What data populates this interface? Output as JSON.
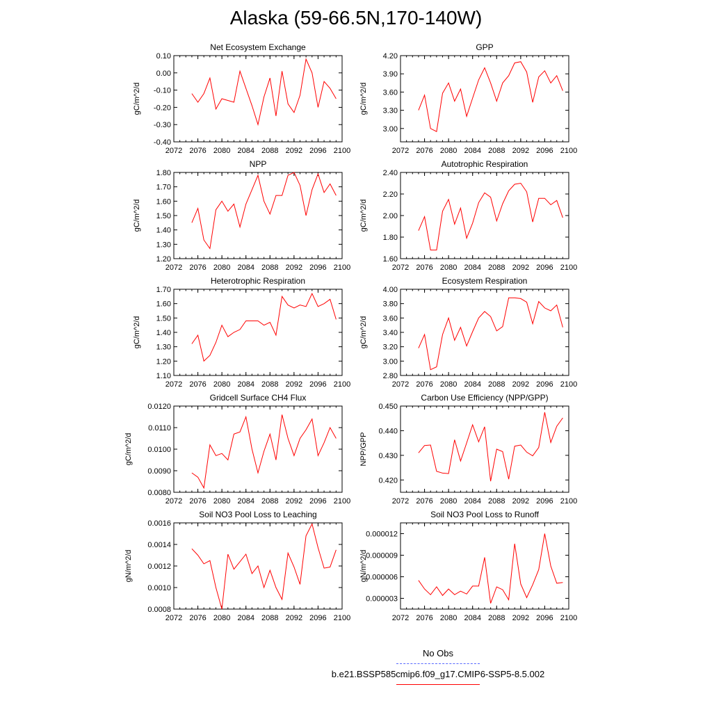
{
  "title": "Alaska (59-66.5N,170-140W)",
  "legend": [
    {
      "label": "No Obs",
      "color": "#5566ff",
      "style": "dashed"
    },
    {
      "label": "b.e21.BSSP585cmip6.f09_g17.CMIP6-SSP5-8.5.002",
      "color": "#ff0000",
      "style": "solid"
    }
  ],
  "chart_data": [
    {
      "type": "line",
      "title": "Net Ecosystem Exchange",
      "ylabel": "gC/m^2/d",
      "xlim": [
        2072,
        2100
      ],
      "xticks": [
        "2072",
        "2076",
        "2080",
        "2084",
        "2088",
        "2092",
        "2096",
        "2100"
      ],
      "ylim": [
        -0.4,
        0.1
      ],
      "yticks": [
        "0.10",
        "0.00",
        "-0.10",
        "-0.20",
        "-0.30",
        "-0.40"
      ],
      "series": [
        {
          "color": "#ff0000",
          "x": [
            2075,
            2076,
            2077,
            2078,
            2079,
            2080,
            2081,
            2082,
            2083,
            2084,
            2085,
            2086,
            2087,
            2088,
            2089,
            2090,
            2091,
            2092,
            2093,
            2094,
            2095,
            2096,
            2097,
            2098,
            2099
          ],
          "values": [
            -0.12,
            -0.17,
            -0.12,
            -0.03,
            -0.21,
            -0.15,
            -0.16,
            -0.17,
            0.01,
            -0.09,
            -0.19,
            -0.3,
            -0.14,
            -0.03,
            -0.25,
            0.01,
            -0.18,
            -0.23,
            -0.13,
            0.08,
            0.0,
            -0.2,
            -0.05,
            -0.09,
            -0.15
          ]
        }
      ]
    },
    {
      "type": "line",
      "title": "GPP",
      "ylabel": "gC/m^2/d",
      "xlim": [
        2072,
        2100
      ],
      "xticks": [
        "2072",
        "2076",
        "2080",
        "2084",
        "2088",
        "2092",
        "2096",
        "2100"
      ],
      "ylim": [
        2.78,
        4.2
      ],
      "yticks": [
        "4.20",
        "3.90",
        "3.60",
        "3.30",
        "3.00"
      ],
      "series": [
        {
          "color": "#ff0000",
          "x": [
            2075,
            2076,
            2077,
            2078,
            2079,
            2080,
            2081,
            2082,
            2083,
            2084,
            2085,
            2086,
            2087,
            2088,
            2089,
            2090,
            2091,
            2092,
            2093,
            2094,
            2095,
            2096,
            2097,
            2098,
            2099
          ],
          "values": [
            3.3,
            3.55,
            3.0,
            2.95,
            3.58,
            3.75,
            3.45,
            3.65,
            3.2,
            3.5,
            3.8,
            4.0,
            3.75,
            3.45,
            3.75,
            3.87,
            4.08,
            4.1,
            3.93,
            3.43,
            3.85,
            3.95,
            3.75,
            3.87,
            3.62
          ]
        }
      ]
    },
    {
      "type": "line",
      "title": "NPP",
      "ylabel": "gC/m^2/d",
      "xlim": [
        2072,
        2100
      ],
      "xticks": [
        "2072",
        "2076",
        "2080",
        "2084",
        "2088",
        "2092",
        "2096",
        "2100"
      ],
      "ylim": [
        1.2,
        1.8
      ],
      "yticks": [
        "1.80",
        "1.70",
        "1.60",
        "1.50",
        "1.40",
        "1.30",
        "1.20"
      ],
      "series": [
        {
          "color": "#ff0000",
          "x": [
            2075,
            2076,
            2077,
            2078,
            2079,
            2080,
            2081,
            2082,
            2083,
            2084,
            2085,
            2086,
            2087,
            2088,
            2089,
            2090,
            2091,
            2092,
            2093,
            2094,
            2095,
            2096,
            2097,
            2098,
            2099
          ],
          "values": [
            1.45,
            1.55,
            1.33,
            1.27,
            1.54,
            1.6,
            1.53,
            1.58,
            1.42,
            1.58,
            1.68,
            1.78,
            1.6,
            1.51,
            1.64,
            1.64,
            1.78,
            1.8,
            1.71,
            1.5,
            1.68,
            1.79,
            1.66,
            1.72,
            1.64
          ]
        }
      ]
    },
    {
      "type": "line",
      "title": "Autotrophic Respiration",
      "ylabel": "gC/m^2/d",
      "xlim": [
        2072,
        2100
      ],
      "xticks": [
        "2072",
        "2076",
        "2080",
        "2084",
        "2088",
        "2092",
        "2096",
        "2100"
      ],
      "ylim": [
        1.6,
        2.4
      ],
      "yticks": [
        "2.40",
        "2.20",
        "2.00",
        "1.80",
        "1.60"
      ],
      "series": [
        {
          "color": "#ff0000",
          "x": [
            2075,
            2076,
            2077,
            2078,
            2079,
            2080,
            2081,
            2082,
            2083,
            2084,
            2085,
            2086,
            2087,
            2088,
            2089,
            2090,
            2091,
            2092,
            2093,
            2094,
            2095,
            2096,
            2097,
            2098,
            2099
          ],
          "values": [
            1.86,
            1.99,
            1.68,
            1.68,
            2.04,
            2.15,
            1.92,
            2.07,
            1.79,
            1.93,
            2.12,
            2.21,
            2.17,
            1.95,
            2.11,
            2.23,
            2.29,
            2.3,
            2.22,
            1.94,
            2.16,
            2.16,
            2.1,
            2.14,
            1.98
          ]
        }
      ]
    },
    {
      "type": "line",
      "title": "Heterotrophic Respiration",
      "ylabel": "gC/m^2/d",
      "xlim": [
        2072,
        2100
      ],
      "xticks": [
        "2072",
        "2076",
        "2080",
        "2084",
        "2088",
        "2092",
        "2096",
        "2100"
      ],
      "ylim": [
        1.1,
        1.7
      ],
      "yticks": [
        "1.70",
        "1.60",
        "1.50",
        "1.40",
        "1.30",
        "1.20",
        "1.10"
      ],
      "series": [
        {
          "color": "#ff0000",
          "x": [
            2075,
            2076,
            2077,
            2078,
            2079,
            2080,
            2081,
            2082,
            2083,
            2084,
            2085,
            2086,
            2087,
            2088,
            2089,
            2090,
            2091,
            2092,
            2093,
            2094,
            2095,
            2096,
            2097,
            2098,
            2099
          ],
          "values": [
            1.32,
            1.38,
            1.2,
            1.24,
            1.33,
            1.45,
            1.37,
            1.4,
            1.42,
            1.48,
            1.48,
            1.48,
            1.45,
            1.47,
            1.38,
            1.65,
            1.59,
            1.57,
            1.59,
            1.58,
            1.67,
            1.58,
            1.6,
            1.63,
            1.49
          ]
        }
      ]
    },
    {
      "type": "line",
      "title": "Ecosystem Respiration",
      "ylabel": "gC/m^2/d",
      "xlim": [
        2072,
        2100
      ],
      "xticks": [
        "2072",
        "2076",
        "2080",
        "2084",
        "2088",
        "2092",
        "2096",
        "2100"
      ],
      "ylim": [
        2.8,
        4.0
      ],
      "yticks": [
        "4.00",
        "3.80",
        "3.60",
        "3.40",
        "3.20",
        "3.00",
        "2.80"
      ],
      "series": [
        {
          "color": "#ff0000",
          "x": [
            2075,
            2076,
            2077,
            2078,
            2079,
            2080,
            2081,
            2082,
            2083,
            2084,
            2085,
            2086,
            2087,
            2088,
            2089,
            2090,
            2091,
            2092,
            2093,
            2094,
            2095,
            2096,
            2097,
            2098,
            2099
          ],
          "values": [
            3.18,
            3.37,
            2.88,
            2.92,
            3.37,
            3.6,
            3.29,
            3.47,
            3.21,
            3.41,
            3.6,
            3.69,
            3.62,
            3.42,
            3.48,
            3.88,
            3.88,
            3.87,
            3.82,
            3.52,
            3.83,
            3.74,
            3.7,
            3.78,
            3.47
          ]
        }
      ]
    },
    {
      "type": "line",
      "title": "Gridcell Surface CH4 Flux",
      "ylabel": "gC/m^2/d",
      "xlim": [
        2072,
        2100
      ],
      "xticks": [
        "2072",
        "2076",
        "2080",
        "2084",
        "2088",
        "2092",
        "2096",
        "2100"
      ],
      "ylim": [
        0.008,
        0.012
      ],
      "yticks": [
        "0.0120",
        "0.0110",
        "0.0100",
        "0.0090",
        "0.0080"
      ],
      "series": [
        {
          "color": "#ff0000",
          "x": [
            2075,
            2076,
            2077,
            2078,
            2079,
            2080,
            2081,
            2082,
            2083,
            2084,
            2085,
            2086,
            2087,
            2088,
            2089,
            2090,
            2091,
            2092,
            2093,
            2094,
            2095,
            2096,
            2097,
            2098,
            2099
          ],
          "values": [
            0.0089,
            0.0087,
            0.0082,
            0.0102,
            0.0097,
            0.0098,
            0.0095,
            0.0107,
            0.0108,
            0.0115,
            0.01,
            0.0089,
            0.0099,
            0.0107,
            0.0095,
            0.0116,
            0.0105,
            0.0097,
            0.0105,
            0.0109,
            0.0114,
            0.0097,
            0.0103,
            0.011,
            0.0105
          ]
        }
      ]
    },
    {
      "type": "line",
      "title": "Carbon Use Efficiency (NPP/GPP)",
      "ylabel": "NPP/GPP",
      "xlim": [
        2072,
        2100
      ],
      "xticks": [
        "2072",
        "2076",
        "2080",
        "2084",
        "2088",
        "2092",
        "2096",
        "2100"
      ],
      "ylim": [
        0.415,
        0.45
      ],
      "yticks": [
        "0.450",
        "0.440",
        "0.430",
        "0.420"
      ],
      "series": [
        {
          "color": "#ff0000",
          "x": [
            2075,
            2076,
            2077,
            2078,
            2079,
            2080,
            2081,
            2082,
            2083,
            2084,
            2085,
            2086,
            2087,
            2088,
            2089,
            2090,
            2091,
            2092,
            2093,
            2094,
            2095,
            2096,
            2097,
            2098,
            2099
          ],
          "values": [
            0.431,
            0.434,
            0.4342,
            0.4235,
            0.4228,
            0.4226,
            0.4363,
            0.4277,
            0.435,
            0.4424,
            0.4355,
            0.4416,
            0.4195,
            0.4325,
            0.4315,
            0.4203,
            0.4337,
            0.4342,
            0.4313,
            0.4298,
            0.4332,
            0.4475,
            0.4352,
            0.4418,
            0.4452
          ]
        }
      ]
    },
    {
      "type": "line",
      "title": "Soil NO3 Pool Loss to Leaching",
      "ylabel": "gN/m^2/d",
      "xlim": [
        2072,
        2100
      ],
      "xticks": [
        "2072",
        "2076",
        "2080",
        "2084",
        "2088",
        "2092",
        "2096",
        "2100"
      ],
      "ylim": [
        0.0008,
        0.0016
      ],
      "yticks": [
        "0.0016",
        "0.0014",
        "0.0012",
        "0.0010",
        "0.0008"
      ],
      "series": [
        {
          "color": "#ff0000",
          "x": [
            2075,
            2076,
            2077,
            2078,
            2079,
            2080,
            2081,
            2082,
            2083,
            2084,
            2085,
            2086,
            2087,
            2088,
            2089,
            2090,
            2091,
            2092,
            2093,
            2094,
            2095,
            2096,
            2097,
            2098,
            2099
          ],
          "values": [
            0.00136,
            0.0013,
            0.00122,
            0.00125,
            0.001,
            0.0008,
            0.00131,
            0.00117,
            0.00124,
            0.00131,
            0.00113,
            0.0012,
            0.001,
            0.00116,
            0.001,
            0.00089,
            0.00132,
            0.00119,
            0.00103,
            0.00148,
            0.00159,
            0.00137,
            0.00118,
            0.00119,
            0.00135
          ]
        }
      ]
    },
    {
      "type": "line",
      "title": "Soil NO3 Pool Loss to Runoff",
      "ylabel": "gN/m^2/d",
      "xlim": [
        2072,
        2100
      ],
      "xticks": [
        "2072",
        "2076",
        "2080",
        "2084",
        "2088",
        "2092",
        "2096",
        "2100"
      ],
      "ylim": [
        1.5e-06,
        1.35e-05
      ],
      "yticks": [
        "0.000012",
        "0.000009",
        "0.000006",
        "0.000003"
      ],
      "series": [
        {
          "color": "#ff0000",
          "x": [
            2075,
            2076,
            2077,
            2078,
            2079,
            2080,
            2081,
            2082,
            2083,
            2084,
            2085,
            2086,
            2087,
            2088,
            2089,
            2090,
            2091,
            2092,
            2093,
            2094,
            2095,
            2096,
            2097,
            2098,
            2099
          ],
          "values": [
            5.5e-06,
            4.3e-06,
            3.5e-06,
            4.6e-06,
            3.4e-06,
            4.3e-06,
            3.5e-06,
            4e-06,
            3.6e-06,
            4.7e-06,
            4.7e-06,
            8.7e-06,
            2.3e-06,
            4.6e-06,
            4.2e-06,
            2.8e-06,
            1.06e-05,
            5e-06,
            3.1e-06,
            4.9e-06,
            7e-06,
            1.2e-05,
            7.5e-06,
            5.1e-06,
            5.2e-06
          ]
        }
      ]
    }
  ]
}
